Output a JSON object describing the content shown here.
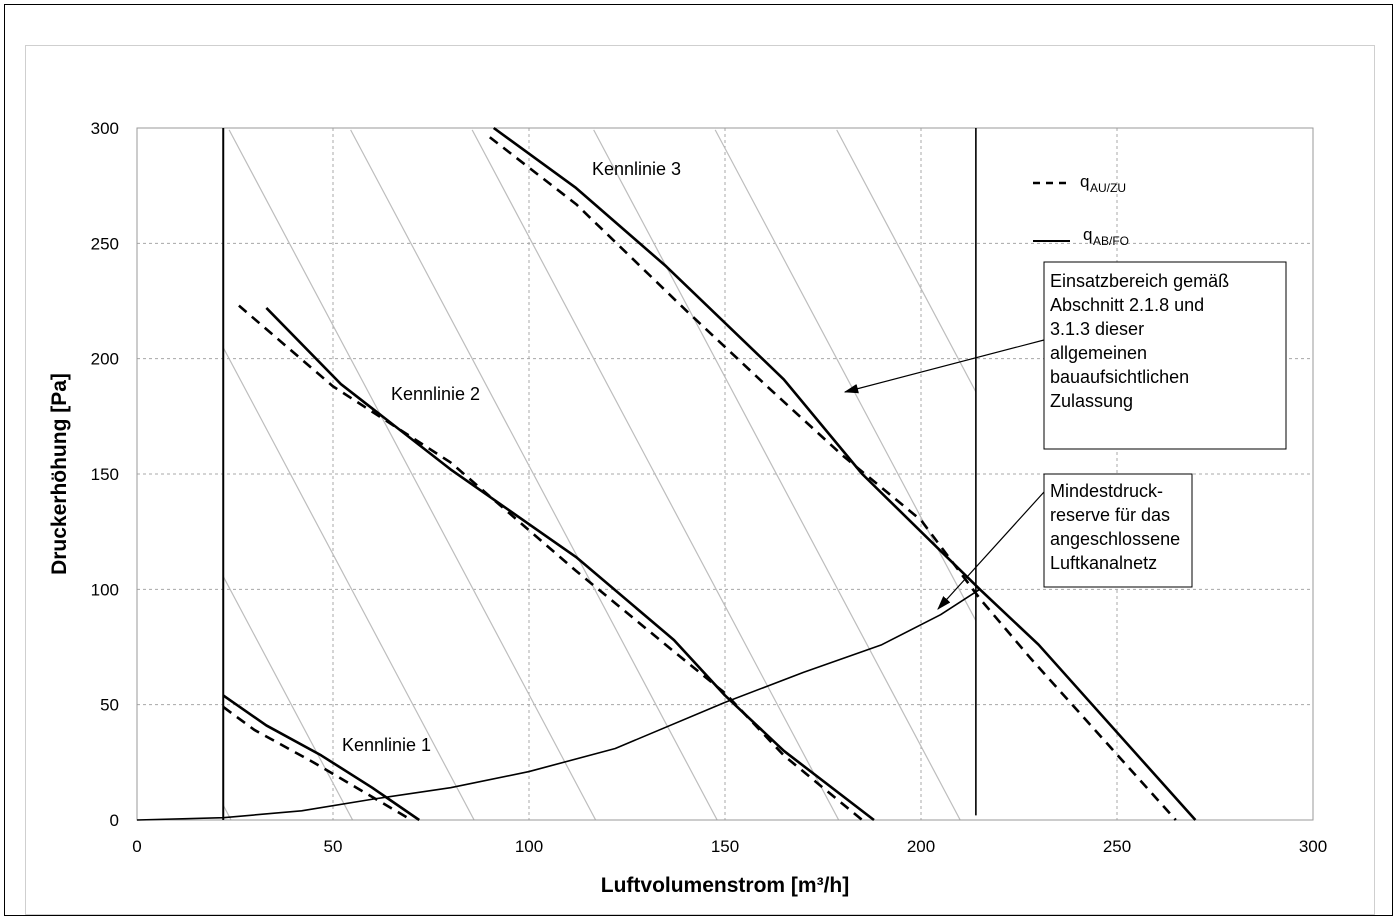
{
  "chart_data": {
    "type": "line",
    "xlabel": "Luftvolumenstrom [m³/h]",
    "ylabel": "Druckerhöhung  [Pa]",
    "xlim": [
      0,
      300
    ],
    "ylim": [
      0,
      300
    ],
    "xticks": [
      0,
      50,
      100,
      150,
      200,
      250,
      300
    ],
    "yticks": [
      0,
      50,
      100,
      150,
      200,
      250,
      300
    ],
    "grid": "dashed gridlines",
    "legend": {
      "placement": "top-right",
      "entries": [
        {
          "main": "q",
          "sub": "AU/ZU",
          "style": "dashed"
        },
        {
          "main": "q",
          "sub": "AB/FO",
          "style": "solid"
        }
      ]
    },
    "curve_labels": [
      "Kennlinie 1",
      "Kennlinie 2",
      "Kennlinie 3"
    ],
    "series": [
      {
        "label_ref": "Kennlinie 1",
        "style": "solid",
        "points": [
          [
            22,
            54
          ],
          [
            33,
            41
          ],
          [
            47,
            28
          ],
          [
            60,
            14
          ],
          [
            72,
            0
          ]
        ]
      },
      {
        "label_ref": "Kennlinie 1",
        "style": "dashed",
        "points": [
          [
            22,
            49
          ],
          [
            30,
            39
          ],
          [
            45,
            25
          ],
          [
            56,
            14
          ],
          [
            70,
            0
          ]
        ]
      },
      {
        "label_ref": "Kennlinie 2",
        "style": "solid",
        "points": [
          [
            33,
            222
          ],
          [
            52,
            189
          ],
          [
            80,
            152
          ],
          [
            112,
            114
          ],
          [
            137,
            78
          ],
          [
            150,
            54
          ],
          [
            165,
            30
          ],
          [
            188,
            0
          ]
        ]
      },
      {
        "label_ref": "Kennlinie 2",
        "style": "dashed",
        "points": [
          [
            26,
            223
          ],
          [
            50,
            188
          ],
          [
            80,
            155
          ],
          [
            112,
            108
          ],
          [
            137,
            73
          ],
          [
            150,
            55
          ],
          [
            165,
            28
          ],
          [
            185,
            0
          ]
        ]
      },
      {
        "label_ref": "Kennlinie 3",
        "style": "solid",
        "points": [
          [
            91,
            300
          ],
          [
            112,
            274
          ],
          [
            135,
            240
          ],
          [
            165,
            191
          ],
          [
            185,
            150
          ],
          [
            200,
            125
          ],
          [
            215,
            100
          ],
          [
            230,
            76
          ],
          [
            270,
            0
          ]
        ]
      },
      {
        "label_ref": "Kennlinie 3",
        "style": "dashed",
        "points": [
          [
            90,
            296
          ],
          [
            112,
            267
          ],
          [
            140,
            221
          ],
          [
            162,
            186
          ],
          [
            180,
            158
          ],
          [
            200,
            130
          ],
          [
            215,
            96
          ],
          [
            228,
            70
          ],
          [
            265,
            0
          ]
        ]
      },
      {
        "name": "Mindestdruckreserve",
        "style": "solid-thin",
        "points": [
          [
            0,
            0
          ],
          [
            22,
            1
          ],
          [
            42,
            4
          ],
          [
            60,
            9
          ],
          [
            80,
            14
          ],
          [
            100,
            21
          ],
          [
            122,
            31
          ],
          [
            150,
            51
          ],
          [
            170,
            64
          ],
          [
            190,
            76
          ],
          [
            205,
            89
          ],
          [
            215,
            100
          ]
        ]
      }
    ],
    "boundary_lines_x": [
      22,
      214
    ],
    "annotations": [
      {
        "lines": [
          "Einsatzbereich  gemäß",
          "Abschnitt 2.1.8 und",
          "3.1.3 dieser",
          "allgemeinen",
          "bauaufsichtlichen",
          "Zulassung"
        ]
      },
      {
        "lines": [
          "Mindestdruck-",
          "reserve für das",
          "angeschlossene",
          "Luftkanalnetz"
        ]
      }
    ]
  }
}
